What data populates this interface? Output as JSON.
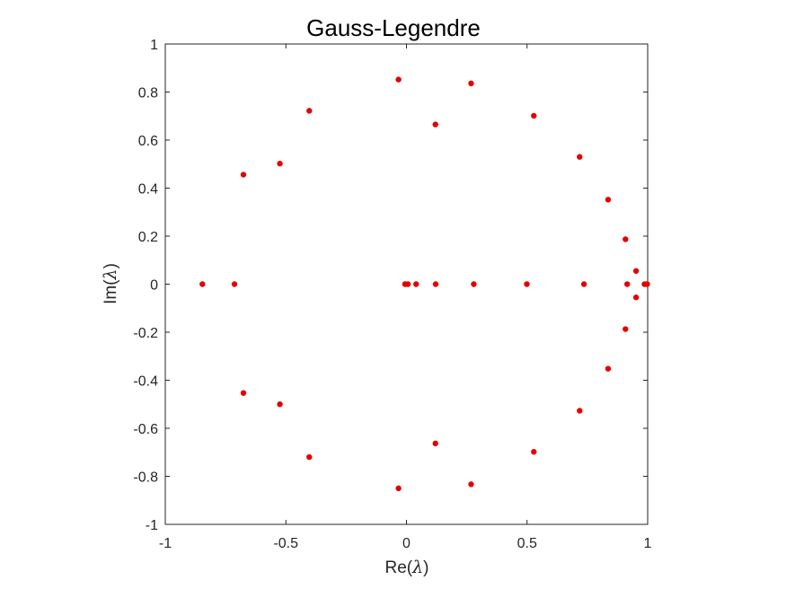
{
  "chart_data": {
    "type": "scatter",
    "title": "Gauss-Legendre",
    "xlabel_prefix": "Re(",
    "ylabel_prefix": "Im(",
    "label_symbol": "λ",
    "label_suffix": ")",
    "xlim": [
      -1,
      1
    ],
    "ylim": [
      -1,
      1
    ],
    "xticks": [
      -1,
      -0.5,
      0,
      0.5,
      1
    ],
    "xtick_labels": [
      "-1",
      "-0.5",
      "0",
      "0.5",
      "1"
    ],
    "yticks": [
      -1,
      -0.8,
      -0.6,
      -0.4,
      -0.2,
      0,
      0.2,
      0.4,
      0.6,
      0.8,
      1
    ],
    "ytick_labels": [
      "-1",
      "-0.8",
      "-0.6",
      "-0.4",
      "-0.2",
      "0",
      "0.2",
      "0.4",
      "0.6",
      "0.8",
      "1"
    ],
    "grid": false,
    "marker_color": "#e50000",
    "points": [
      {
        "x": -0.033,
        "y": 0.852
      },
      {
        "x": 0.268,
        "y": 0.836
      },
      {
        "x": 0.528,
        "y": 0.701
      },
      {
        "x": 0.718,
        "y": 0.53
      },
      {
        "x": 0.836,
        "y": 0.352
      },
      {
        "x": 0.908,
        "y": 0.187
      },
      {
        "x": 0.952,
        "y": 0.055
      },
      {
        "x": 0.915,
        "y": 0.0
      },
      {
        "x": 0.952,
        "y": -0.055
      },
      {
        "x": 0.908,
        "y": -0.187
      },
      {
        "x": 0.836,
        "y": -0.352
      },
      {
        "x": 0.718,
        "y": -0.527
      },
      {
        "x": 0.528,
        "y": -0.698
      },
      {
        "x": 0.268,
        "y": -0.833
      },
      {
        "x": -0.033,
        "y": -0.85
      },
      {
        "x": -0.403,
        "y": 0.722
      },
      {
        "x": -0.525,
        "y": 0.502
      },
      {
        "x": -0.676,
        "y": 0.456
      },
      {
        "x": -0.403,
        "y": -0.72
      },
      {
        "x": -0.525,
        "y": -0.5
      },
      {
        "x": -0.676,
        "y": -0.453
      },
      {
        "x": 0.12,
        "y": 0.665
      },
      {
        "x": 0.12,
        "y": -0.663
      },
      {
        "x": -0.846,
        "y": 0.0
      },
      {
        "x": -0.713,
        "y": 0.0
      },
      {
        "x": -0.006,
        "y": 0.0
      },
      {
        "x": 0.006,
        "y": 0.0
      },
      {
        "x": 0.04,
        "y": 0.0
      },
      {
        "x": 0.121,
        "y": 0.0
      },
      {
        "x": 0.279,
        "y": 0.0
      },
      {
        "x": 0.499,
        "y": 0.0
      },
      {
        "x": 0.736,
        "y": 0.0
      },
      {
        "x": 0.987,
        "y": 0.0
      },
      {
        "x": 0.998,
        "y": 0.0
      }
    ]
  }
}
